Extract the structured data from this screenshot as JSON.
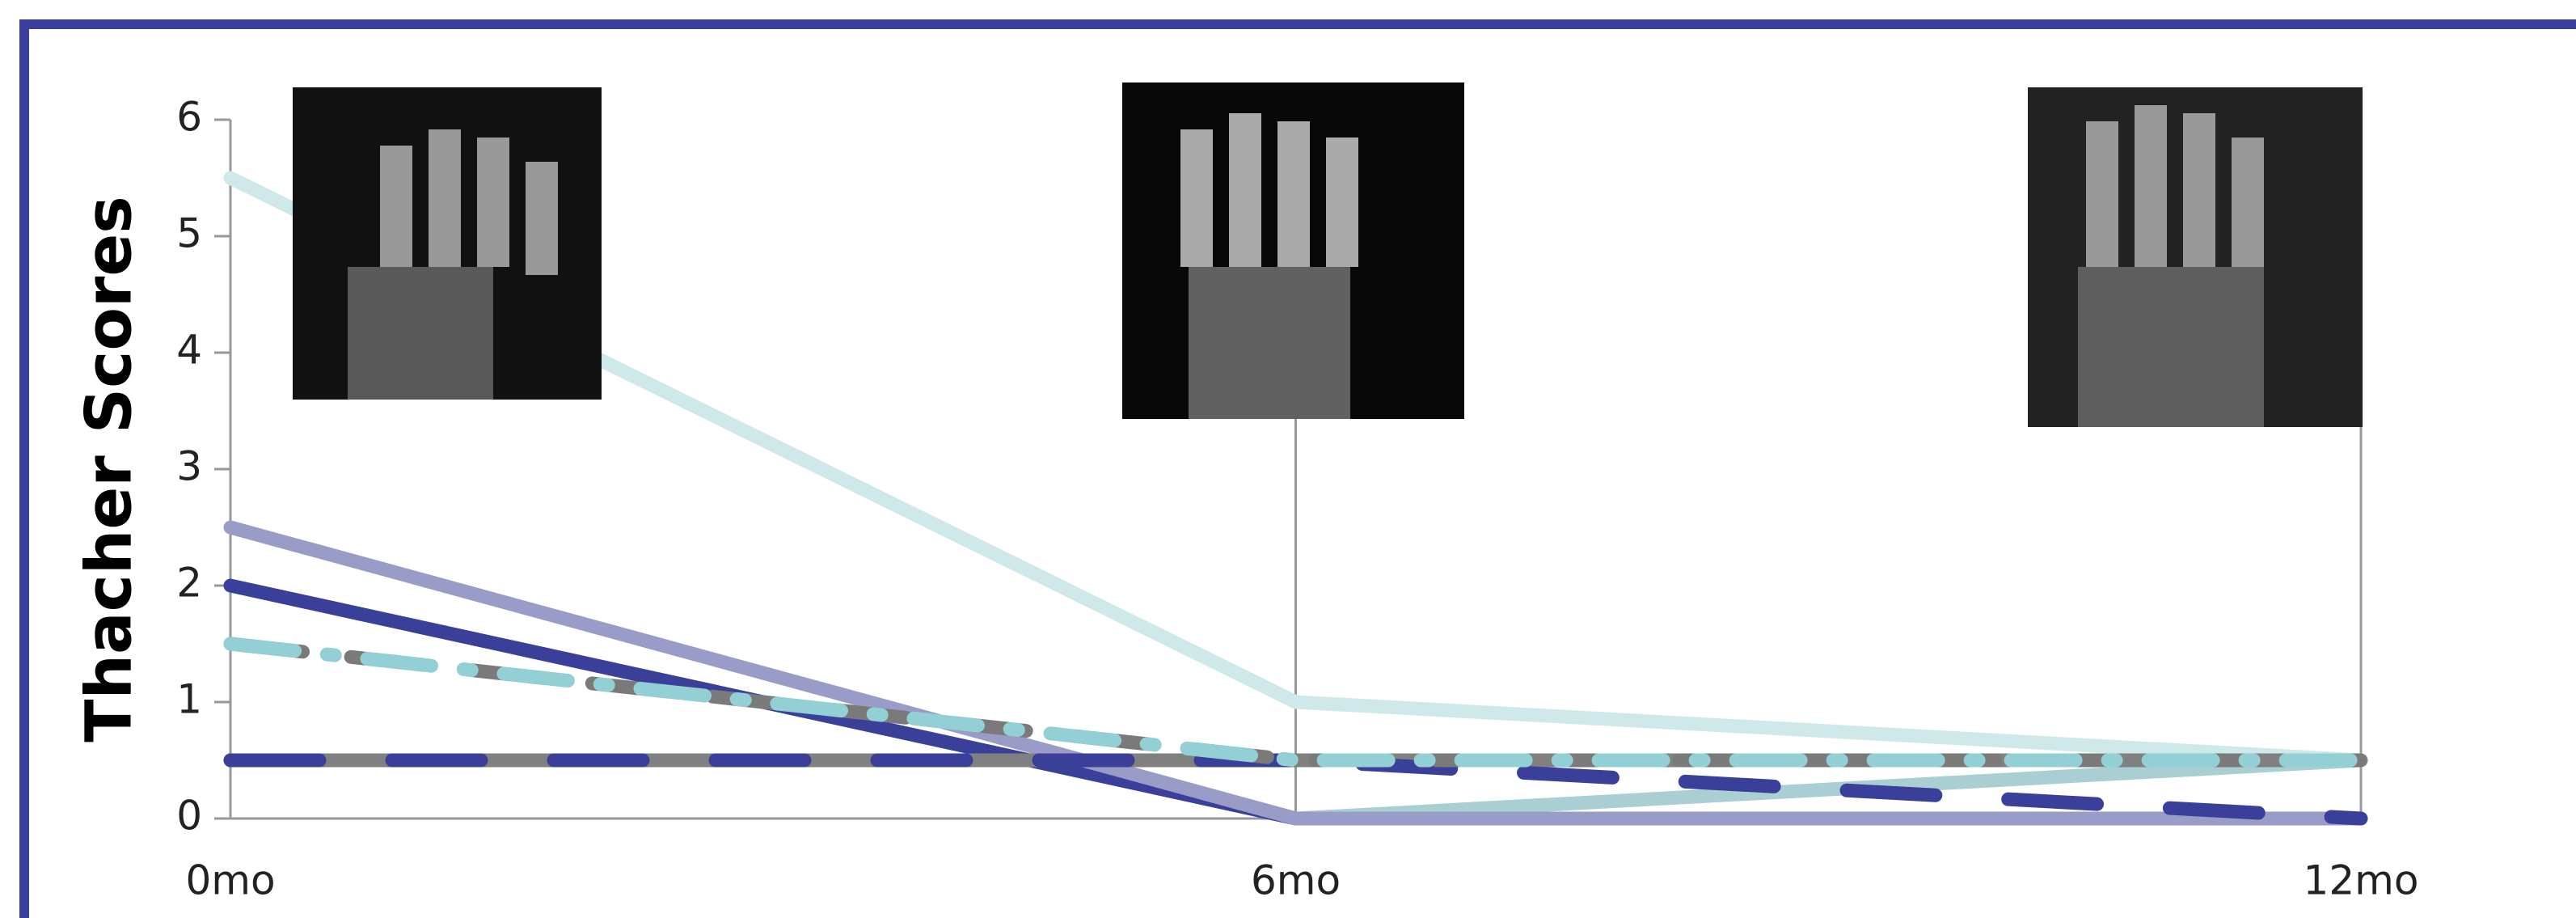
{
  "chart_data": {
    "type": "line",
    "y_label": "Thacher Scores",
    "categories": [
      "0mo",
      "6mo",
      "12mo"
    ],
    "series": [
      {
        "color": "#cfe8ea",
        "values": [
          5.5,
          1,
          0.5
        ],
        "dash": "solid"
      },
      {
        "color": "#a9cfd2",
        "values": [
          null,
          0,
          0.5
        ],
        "dash": "solid"
      },
      {
        "color": "#3a3f9a",
        "values": [
          2,
          0,
          null
        ],
        "dash": "solid"
      },
      {
        "color": "#9a9cc8",
        "values": [
          2.5,
          0,
          0
        ],
        "dash": "solid"
      },
      {
        "color": "#808080",
        "values": [
          0.5,
          0.5,
          0.5
        ],
        "dash": "solid"
      },
      {
        "color": "#3a3f9a",
        "values": [
          0.5,
          0.5,
          0
        ],
        "dash": "long"
      },
      {
        "color": "#7a7a7a",
        "values": [
          1.5,
          0.5,
          0.5
        ],
        "dash": "dash"
      },
      {
        "color": "#93d0d6",
        "values": [
          1.5,
          0.5,
          0.5
        ],
        "dash": "dashdot"
      }
    ],
    "ylim": [
      0,
      6
    ],
    "yticks": [
      0,
      1,
      2,
      3,
      4,
      5,
      6
    ]
  }
}
